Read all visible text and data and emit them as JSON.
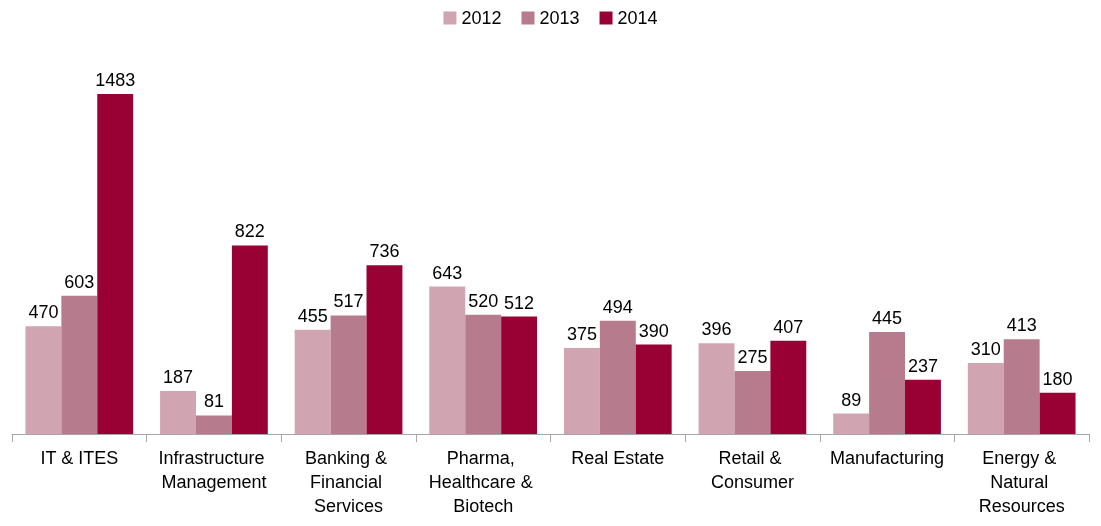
{
  "chart_data": {
    "type": "bar",
    "categories": [
      "IT & ITES",
      "Infrastructure Management",
      "Banking & Financial Services",
      "Pharma, Healthcare & Biotech",
      "Real Estate",
      "Retail & Consumer",
      "Manufacturing",
      "Energy & Natural Resources"
    ],
    "series": [
      {
        "name": "2012",
        "color": "#d0a5b1",
        "values": [
          470,
          187,
          455,
          643,
          375,
          396,
          89,
          310
        ]
      },
      {
        "name": "2013",
        "color": "#b67b8c",
        "values": [
          603,
          81,
          517,
          520,
          494,
          275,
          445,
          413
        ]
      },
      {
        "name": "2014",
        "color": "#990033",
        "values": [
          1483,
          822,
          736,
          512,
          390,
          407,
          237,
          180
        ]
      }
    ],
    "data_labels": true,
    "legend": "top",
    "grid": false
  }
}
